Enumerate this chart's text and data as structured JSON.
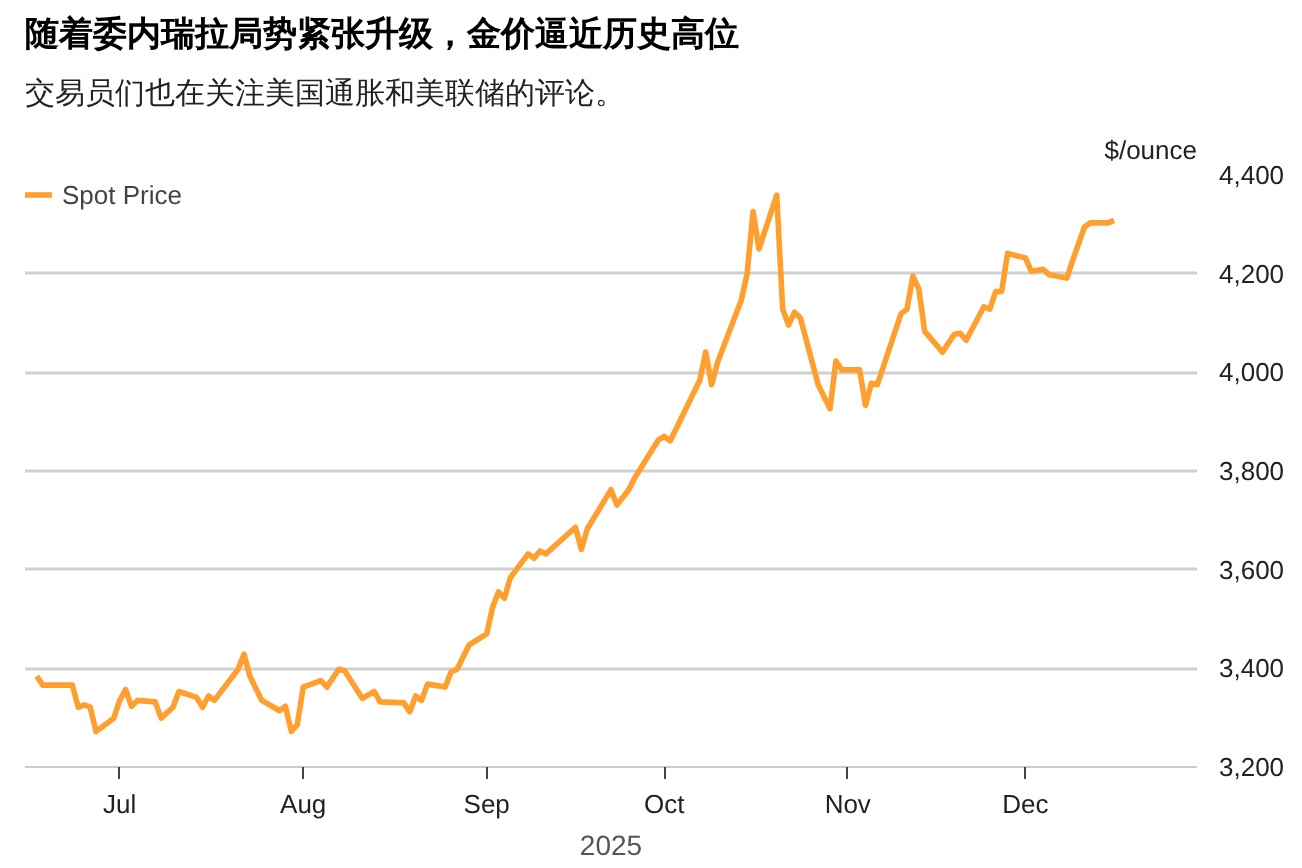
{
  "chart_data": {
    "type": "line",
    "title": "随着委内瑞拉局势紧张升级，金价逼近历史高位",
    "subtitle": "交易员们也在关注美国通胀和美联储的评论。",
    "xlabel": "2025",
    "ylabel": "$/ounce",
    "legend": "top left",
    "grid": "y",
    "xlim": [
      "2025-06-15",
      "2025-12-30"
    ],
    "ylim": [
      3200,
      4400
    ],
    "xticks": [
      {
        "value": "2025-07-01",
        "label": "Jul"
      },
      {
        "value": "2025-08-01",
        "label": "Aug"
      },
      {
        "value": "2025-09-01",
        "label": "Sep"
      },
      {
        "value": "2025-10-01",
        "label": "Oct"
      },
      {
        "value": "2025-11-01",
        "label": "Nov"
      },
      {
        "value": "2025-12-01",
        "label": "Dec"
      }
    ],
    "yticks": [
      {
        "value": 3200,
        "label": "3,200"
      },
      {
        "value": 3400,
        "label": "3,400"
      },
      {
        "value": 3600,
        "label": "3,600"
      },
      {
        "value": 3800,
        "label": "3,800"
      },
      {
        "value": 4000,
        "label": "4,000"
      },
      {
        "value": 4200,
        "label": "4,200"
      },
      {
        "value": 4400,
        "label": "4,400"
      }
    ],
    "series": [
      {
        "name": "Spot Price",
        "color": "#ff9f2f",
        "x": [
          "2025-06-17",
          "2025-06-18",
          "2025-06-23",
          "2025-06-24",
          "2025-06-25",
          "2025-06-26",
          "2025-06-27",
          "2025-06-30",
          "2025-07-01",
          "2025-07-02",
          "2025-07-03",
          "2025-07-04",
          "2025-07-07",
          "2025-07-08",
          "2025-07-10",
          "2025-07-11",
          "2025-07-14",
          "2025-07-15",
          "2025-07-16",
          "2025-07-17",
          "2025-07-21",
          "2025-07-22",
          "2025-07-23",
          "2025-07-25",
          "2025-07-28",
          "2025-07-29",
          "2025-07-30",
          "2025-07-31",
          "2025-08-01",
          "2025-08-04",
          "2025-08-05",
          "2025-08-07",
          "2025-08-08",
          "2025-08-11",
          "2025-08-13",
          "2025-08-14",
          "2025-08-18",
          "2025-08-19",
          "2025-08-20",
          "2025-08-21",
          "2025-08-22",
          "2025-08-25",
          "2025-08-26",
          "2025-08-27",
          "2025-08-29",
          "2025-09-01",
          "2025-09-02",
          "2025-09-03",
          "2025-09-04",
          "2025-09-05",
          "2025-09-08",
          "2025-09-09",
          "2025-09-10",
          "2025-09-11",
          "2025-09-16",
          "2025-09-17",
          "2025-09-18",
          "2025-09-22",
          "2025-09-23",
          "2025-09-25",
          "2025-09-26",
          "2025-09-30",
          "2025-10-01",
          "2025-10-02",
          "2025-10-07",
          "2025-10-08",
          "2025-10-09",
          "2025-10-10",
          "2025-10-14",
          "2025-10-15",
          "2025-10-16",
          "2025-10-17",
          "2025-10-20",
          "2025-10-21",
          "2025-10-22",
          "2025-10-23",
          "2025-10-24",
          "2025-10-27",
          "2025-10-29",
          "2025-10-30",
          "2025-10-31",
          "2025-11-03",
          "2025-11-04",
          "2025-11-05",
          "2025-11-06",
          "2025-11-10",
          "2025-11-11",
          "2025-11-12",
          "2025-11-13",
          "2025-11-14",
          "2025-11-17",
          "2025-11-19",
          "2025-11-20",
          "2025-11-21",
          "2025-11-24",
          "2025-11-25",
          "2025-11-26",
          "2025-11-27",
          "2025-11-28",
          "2025-12-01",
          "2025-12-02",
          "2025-12-04",
          "2025-12-05",
          "2025-12-08",
          "2025-12-09",
          "2025-12-11",
          "2025-12-12",
          "2025-12-15",
          "2025-12-16"
        ],
        "values": [
          3384,
          3366,
          3366,
          3321,
          3326,
          3322,
          3272,
          3299,
          3335,
          3357,
          3323,
          3335,
          3332,
          3299,
          3321,
          3353,
          3341,
          3321,
          3344,
          3335,
          3398,
          3429,
          3384,
          3335,
          3314,
          3323,
          3272,
          3286,
          3362,
          3375,
          3362,
          3398,
          3395,
          3339,
          3353,
          3332,
          3330,
          3312,
          3344,
          3335,
          3368,
          3362,
          3393,
          3398,
          3447,
          3470,
          3524,
          3555,
          3542,
          3584,
          3632,
          3623,
          3638,
          3632,
          3686,
          3641,
          3683,
          3762,
          3731,
          3762,
          3786,
          3863,
          3870,
          3861,
          3984,
          4041,
          3975,
          4020,
          4146,
          4200,
          4326,
          4250,
          4359,
          4128,
          4096,
          4122,
          4110,
          3975,
          3926,
          4023,
          4005,
          4005,
          3933,
          3978,
          3975,
          4119,
          4128,
          4195,
          4169,
          4083,
          4041,
          4077,
          4079,
          4065,
          4133,
          4128,
          4164,
          4164,
          4241,
          4232,
          4205,
          4209,
          4198,
          4191,
          4227,
          4295,
          4303,
          4303,
          4308
        ]
      }
    ]
  }
}
